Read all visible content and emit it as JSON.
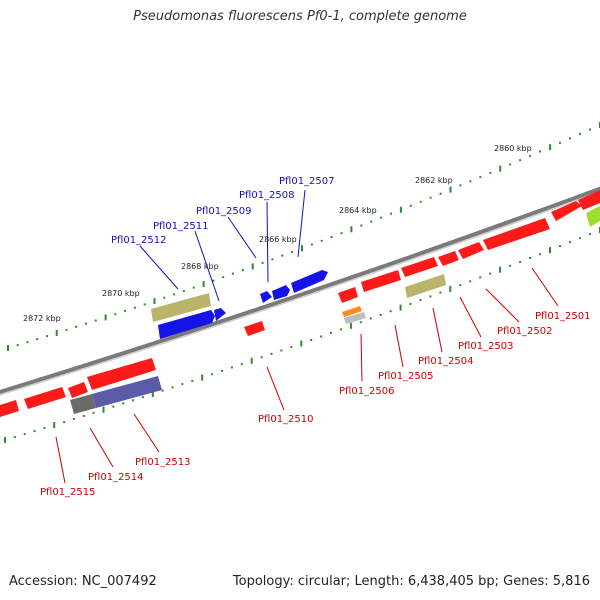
{
  "title": "Pseudomonas fluorescens Pf0-1, complete genome",
  "footer": {
    "accession": "Accession: NC_007492",
    "summary": "Topology: circular; Length: 6,438,405 bp; Genes: 5,816"
  },
  "colors": {
    "backbone": "#7a7a7a",
    "tick": "#2f8a2f",
    "cds_red": "#ff1a1a",
    "cds_blue": "#1414e6",
    "cds_olive": "#b9b46a",
    "cds_slate": "#5a5aa8",
    "cds_gray": "#6a6a6a",
    "cds_orange": "#ff8c1a",
    "cds_lime": "#9adf2a",
    "label_blue": "#1010c0",
    "label_red": "#cc0000"
  },
  "scale_labels": [
    "2860 kbp",
    "2862 kbp",
    "2864 kbp",
    "2866 kbp",
    "2868 kbp",
    "2870 kbp",
    "2872 kbp"
  ],
  "gene_labels_top": [
    "Pfl01_2507",
    "Pfl01_2508",
    "Pfl01_2509",
    "Pfl01_2511",
    "Pfl01_2512"
  ],
  "gene_labels_bottom": [
    "Pfl01_2501",
    "Pfl01_2502",
    "Pfl01_2503",
    "Pfl01_2504",
    "Pfl01_2505",
    "Pfl01_2506",
    "Pfl01_2510",
    "Pfl01_2513",
    "Pfl01_2514",
    "Pfl01_2515"
  ]
}
